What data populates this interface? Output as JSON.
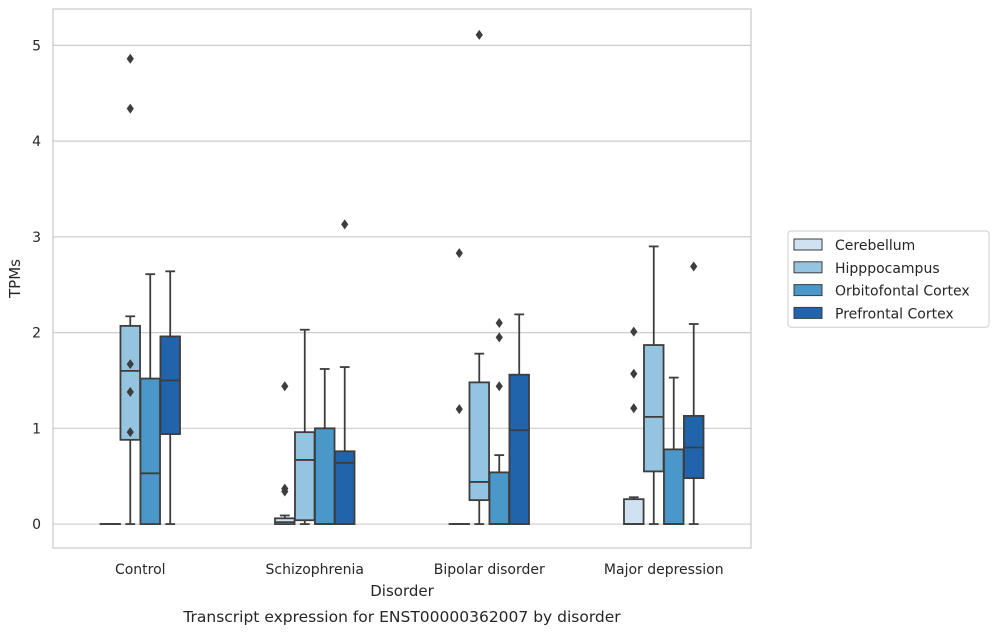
{
  "chart_data": {
    "type": "box",
    "caption": "Transcript expression for ENST00000362007 by disorder",
    "xlabel": "Disorder",
    "ylabel": "TPMs",
    "ylim": [
      -0.25,
      5.38
    ],
    "yticks": [
      0,
      1,
      2,
      3,
      4,
      5
    ],
    "grid": "horizontal",
    "legend_position": "outside-right",
    "categories": [
      "Control",
      "Schizophrenia",
      "Bipolar disorder",
      "Major depression"
    ],
    "series": [
      {
        "name": "Cerebellum",
        "color": "#d0e1f2",
        "boxes": [
          {
            "q1": 0,
            "median": 0,
            "q3": 0,
            "whisker_low": 0,
            "whisker_high": 0,
            "outliers": []
          },
          {
            "q1": 0,
            "median": 0.02,
            "q3": 0.06,
            "whisker_low": 0,
            "whisker_high": 0.09,
            "outliers": [
              0.34,
              0.37,
              1.44
            ]
          },
          {
            "q1": 0,
            "median": 0,
            "q3": 0,
            "whisker_low": 0,
            "whisker_high": 0,
            "outliers": [
              1.2,
              2.83
            ]
          },
          {
            "q1": 0,
            "median": 0,
            "q3": 0.26,
            "whisker_low": 0,
            "whisker_high": 0.28,
            "outliers": [
              1.21,
              1.57,
              2.01
            ]
          }
        ]
      },
      {
        "name": "Hipppocampus",
        "color": "#94c4df",
        "boxes": [
          {
            "q1": 0.88,
            "median": 1.6,
            "q3": 2.07,
            "whisker_low": 0,
            "whisker_high": 2.17,
            "outliers": [
              0.96,
              1.38,
              1.67,
              4.34,
              4.86
            ]
          },
          {
            "q1": 0.04,
            "median": 0.67,
            "q3": 0.96,
            "whisker_low": 0,
            "whisker_high": 2.03,
            "outliers": []
          },
          {
            "q1": 0.25,
            "median": 0.44,
            "q3": 1.48,
            "whisker_low": 0,
            "whisker_high": 1.78,
            "outliers": [
              5.11
            ]
          },
          {
            "q1": 0.55,
            "median": 1.12,
            "q3": 1.87,
            "whisker_low": 0,
            "whisker_high": 2.9,
            "outliers": []
          }
        ]
      },
      {
        "name": "Orbitofontal Cortex",
        "color": "#4a98c9",
        "boxes": [
          {
            "q1": 0,
            "median": 0.53,
            "q3": 1.52,
            "whisker_low": 0,
            "whisker_high": 2.61,
            "outliers": []
          },
          {
            "q1": 0,
            "median": 0,
            "q3": 1.0,
            "whisker_low": 0,
            "whisker_high": 1.62,
            "outliers": []
          },
          {
            "q1": 0,
            "median": 0,
            "q3": 0.54,
            "whisker_low": 0,
            "whisker_high": 0.72,
            "outliers": [
              1.44,
              1.95,
              2.1
            ]
          },
          {
            "q1": 0,
            "median": 0,
            "q3": 0.78,
            "whisker_low": 0,
            "whisker_high": 1.53,
            "outliers": []
          }
        ]
      },
      {
        "name": "Prefrontal Cortex",
        "color": "#2164ab",
        "boxes": [
          {
            "q1": 0.94,
            "median": 1.5,
            "q3": 1.96,
            "whisker_low": 0,
            "whisker_high": 2.64,
            "outliers": []
          },
          {
            "q1": 0,
            "median": 0.64,
            "q3": 0.76,
            "whisker_low": 0,
            "whisker_high": 1.64,
            "outliers": [
              3.13
            ]
          },
          {
            "q1": 0,
            "median": 0.98,
            "q3": 1.56,
            "whisker_low": 0,
            "whisker_high": 2.19,
            "outliers": []
          },
          {
            "q1": 0.48,
            "median": 0.8,
            "q3": 1.13,
            "whisker_low": 0,
            "whisker_high": 2.09,
            "outliers": [
              2.69
            ]
          }
        ]
      }
    ]
  }
}
